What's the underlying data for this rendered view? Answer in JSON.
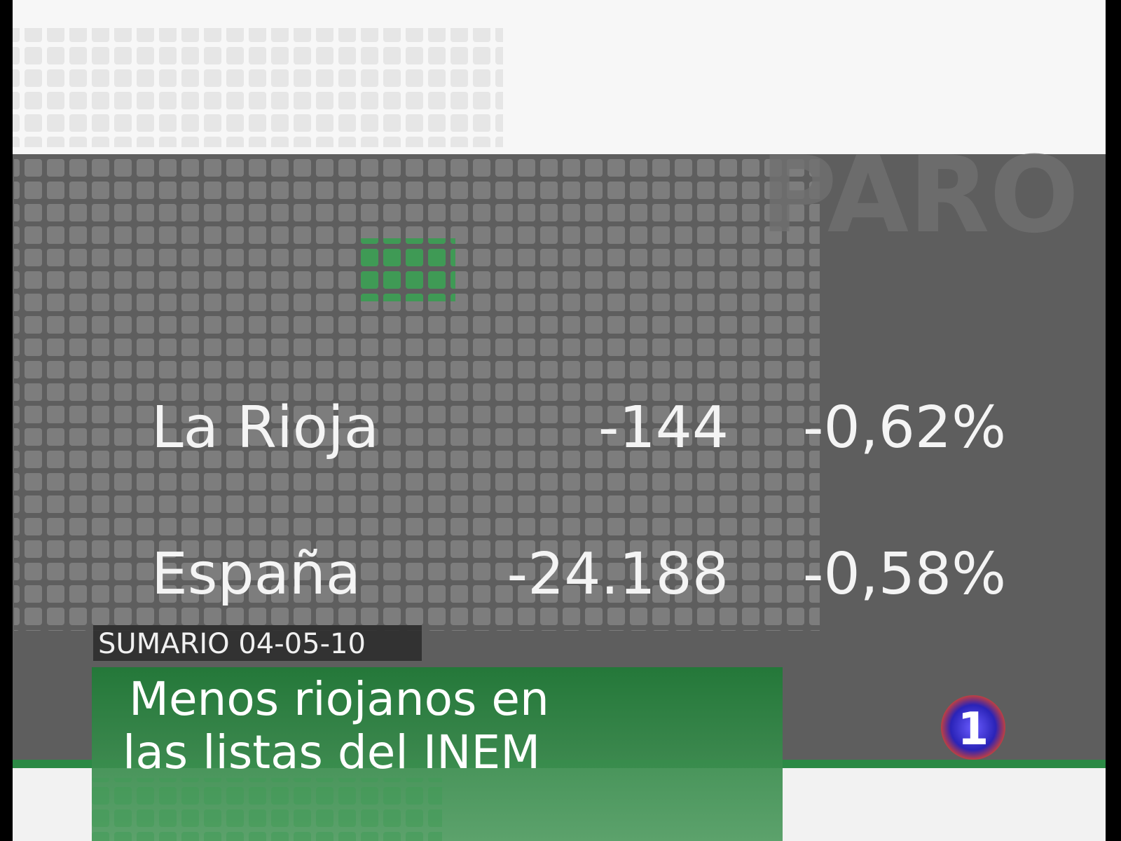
{
  "background_word": "PARO",
  "table": {
    "rows": [
      [
        "La Rioja",
        "-144",
        "-0,62%"
      ],
      [
        "España",
        "-24.188",
        "-0,58%"
      ]
    ]
  },
  "caption": {
    "section": "SUMARIO 04-05-10",
    "headline_lines": [
      "Menos riojanos en",
      "las listas del INEM"
    ]
  },
  "logo": "1"
}
